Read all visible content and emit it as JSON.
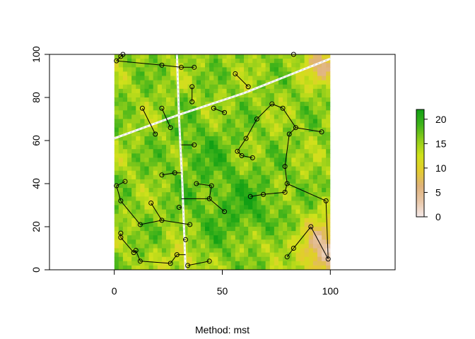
{
  "chart_data": {
    "type": "scatter",
    "title": "",
    "xlabel": "Method: mst",
    "ylabel": "",
    "xlim": [
      -30,
      130
    ],
    "ylim": [
      0,
      100
    ],
    "grid": false,
    "x_ticks": [
      "0",
      "50",
      "100"
    ],
    "y_ticks": [
      "0",
      "20",
      "40",
      "60",
      "80",
      "100"
    ],
    "raster_extent": {
      "x": [
        0,
        100
      ],
      "y": [
        0,
        100
      ]
    },
    "colorbar": {
      "ticks": [
        "0",
        "5",
        "10",
        "15",
        "20"
      ],
      "range": [
        0,
        22
      ],
      "colors": [
        "#f5e9e9",
        "#e8c7a8",
        "#dfb27a",
        "#e3cc2e",
        "#cfe11a",
        "#8fcd1a",
        "#3fb31a",
        "#12a014"
      ]
    },
    "boundary_lines": [
      {
        "name": "",
        "points": [
          [
            29,
            100
          ],
          [
            30,
            70
          ],
          [
            31.5,
            40
          ],
          [
            33,
            0
          ]
        ]
      },
      {
        "name": "",
        "points": [
          [
            0,
            61
          ],
          [
            30,
            72
          ],
          [
            60,
            82
          ],
          [
            100,
            98
          ]
        ]
      }
    ],
    "points": [
      [
        1,
        97
      ],
      [
        3,
        99
      ],
      [
        4,
        100
      ],
      [
        22,
        95
      ],
      [
        31,
        94
      ],
      [
        37,
        94
      ],
      [
        56,
        91
      ],
      [
        62,
        85
      ],
      [
        36,
        85
      ],
      [
        36,
        78
      ],
      [
        46,
        75
      ],
      [
        51,
        73
      ],
      [
        13,
        75
      ],
      [
        19,
        63
      ],
      [
        22,
        75
      ],
      [
        26,
        66
      ],
      [
        37,
        58
      ],
      [
        83,
        100
      ],
      [
        73,
        77
      ],
      [
        78,
        75
      ],
      [
        66,
        70
      ],
      [
        61,
        61
      ],
      [
        57,
        55
      ],
      [
        59,
        53
      ],
      [
        64,
        52
      ],
      [
        84,
        66
      ],
      [
        96,
        64
      ],
      [
        81,
        63
      ],
      [
        79,
        48
      ],
      [
        80,
        40
      ],
      [
        22,
        44
      ],
      [
        28,
        45
      ],
      [
        38,
        40
      ],
      [
        45,
        39
      ],
      [
        44,
        33
      ],
      [
        51,
        27
      ],
      [
        30,
        29
      ],
      [
        1,
        39
      ],
      [
        5,
        41
      ],
      [
        3,
        32
      ],
      [
        12,
        21
      ],
      [
        17,
        31
      ],
      [
        22,
        23
      ],
      [
        35,
        21
      ],
      [
        33,
        14
      ],
      [
        63,
        34
      ],
      [
        69,
        35
      ],
      [
        79,
        36
      ],
      [
        98,
        32
      ],
      [
        91,
        20
      ],
      [
        83,
        10
      ],
      [
        80,
        6
      ],
      [
        99,
        5
      ],
      [
        3,
        17
      ],
      [
        3,
        15
      ],
      [
        9,
        8
      ],
      [
        10,
        9
      ],
      [
        12,
        4
      ],
      [
        26,
        3
      ],
      [
        29,
        7
      ],
      [
        34,
        2
      ],
      [
        44,
        4
      ]
    ],
    "edges": [
      [
        [
          1,
          97
        ],
        [
          22,
          95
        ]
      ],
      [
        [
          22,
          95
        ],
        [
          31,
          94
        ]
      ],
      [
        [
          31,
          94
        ],
        [
          37,
          94
        ]
      ],
      [
        [
          1,
          97
        ],
        [
          3,
          99
        ]
      ],
      [
        [
          3,
          99
        ],
        [
          4,
          100
        ]
      ],
      [
        [
          56,
          91
        ],
        [
          62,
          85
        ]
      ],
      [
        [
          36,
          85
        ],
        [
          36,
          78
        ]
      ],
      [
        [
          46,
          75
        ],
        [
          51,
          73
        ]
      ],
      [
        [
          13,
          75
        ],
        [
          19,
          63
        ]
      ],
      [
        [
          22,
          75
        ],
        [
          26,
          66
        ]
      ],
      [
        [
          31,
          58
        ],
        [
          37,
          58
        ]
      ],
      [
        [
          73,
          77
        ],
        [
          78,
          75
        ]
      ],
      [
        [
          73,
          77
        ],
        [
          66,
          70
        ]
      ],
      [
        [
          66,
          70
        ],
        [
          61,
          61
        ]
      ],
      [
        [
          61,
          61
        ],
        [
          57,
          55
        ]
      ],
      [
        [
          57,
          55
        ],
        [
          59,
          53
        ]
      ],
      [
        [
          59,
          53
        ],
        [
          64,
          52
        ]
      ],
      [
        [
          78,
          75
        ],
        [
          84,
          66
        ]
      ],
      [
        [
          84,
          66
        ],
        [
          96,
          64
        ]
      ],
      [
        [
          84,
          66
        ],
        [
          81,
          63
        ]
      ],
      [
        [
          81,
          63
        ],
        [
          79,
          48
        ]
      ],
      [
        [
          79,
          48
        ],
        [
          80,
          40
        ]
      ],
      [
        [
          22,
          44
        ],
        [
          28,
          45
        ]
      ],
      [
        [
          28,
          45
        ],
        [
          31,
          45
        ]
      ],
      [
        [
          38,
          40
        ],
        [
          45,
          39
        ]
      ],
      [
        [
          45,
          39
        ],
        [
          44,
          33
        ]
      ],
      [
        [
          44,
          33
        ],
        [
          51,
          27
        ]
      ],
      [
        [
          31,
          33
        ],
        [
          44,
          33
        ]
      ],
      [
        [
          30,
          29
        ],
        [
          31,
          29
        ]
      ],
      [
        [
          1,
          39
        ],
        [
          5,
          41
        ]
      ],
      [
        [
          1,
          39
        ],
        [
          3,
          32
        ]
      ],
      [
        [
          3,
          32
        ],
        [
          12,
          21
        ]
      ],
      [
        [
          12,
          21
        ],
        [
          22,
          23
        ]
      ],
      [
        [
          17,
          31
        ],
        [
          22,
          23
        ]
      ],
      [
        [
          22,
          23
        ],
        [
          35,
          21
        ]
      ],
      [
        [
          33,
          14
        ],
        [
          32,
          14
        ]
      ],
      [
        [
          63,
          34
        ],
        [
          69,
          35
        ]
      ],
      [
        [
          69,
          35
        ],
        [
          79,
          36
        ]
      ],
      [
        [
          79,
          36
        ],
        [
          80,
          40
        ]
      ],
      [
        [
          80,
          40
        ],
        [
          98,
          32
        ]
      ],
      [
        [
          98,
          32
        ],
        [
          99,
          5
        ]
      ],
      [
        [
          91,
          20
        ],
        [
          83,
          10
        ]
      ],
      [
        [
          83,
          10
        ],
        [
          80,
          6
        ]
      ],
      [
        [
          91,
          20
        ],
        [
          99,
          5
        ]
      ],
      [
        [
          3,
          17
        ],
        [
          3,
          15
        ]
      ],
      [
        [
          3,
          15
        ],
        [
          9,
          8
        ]
      ],
      [
        [
          9,
          8
        ],
        [
          10,
          9
        ]
      ],
      [
        [
          10,
          9
        ],
        [
          12,
          4
        ]
      ],
      [
        [
          12,
          4
        ],
        [
          26,
          3
        ]
      ],
      [
        [
          26,
          3
        ],
        [
          29,
          7
        ]
      ],
      [
        [
          29,
          7
        ],
        [
          33,
          7
        ]
      ],
      [
        [
          34,
          2
        ],
        [
          44,
          4
        ]
      ]
    ]
  }
}
